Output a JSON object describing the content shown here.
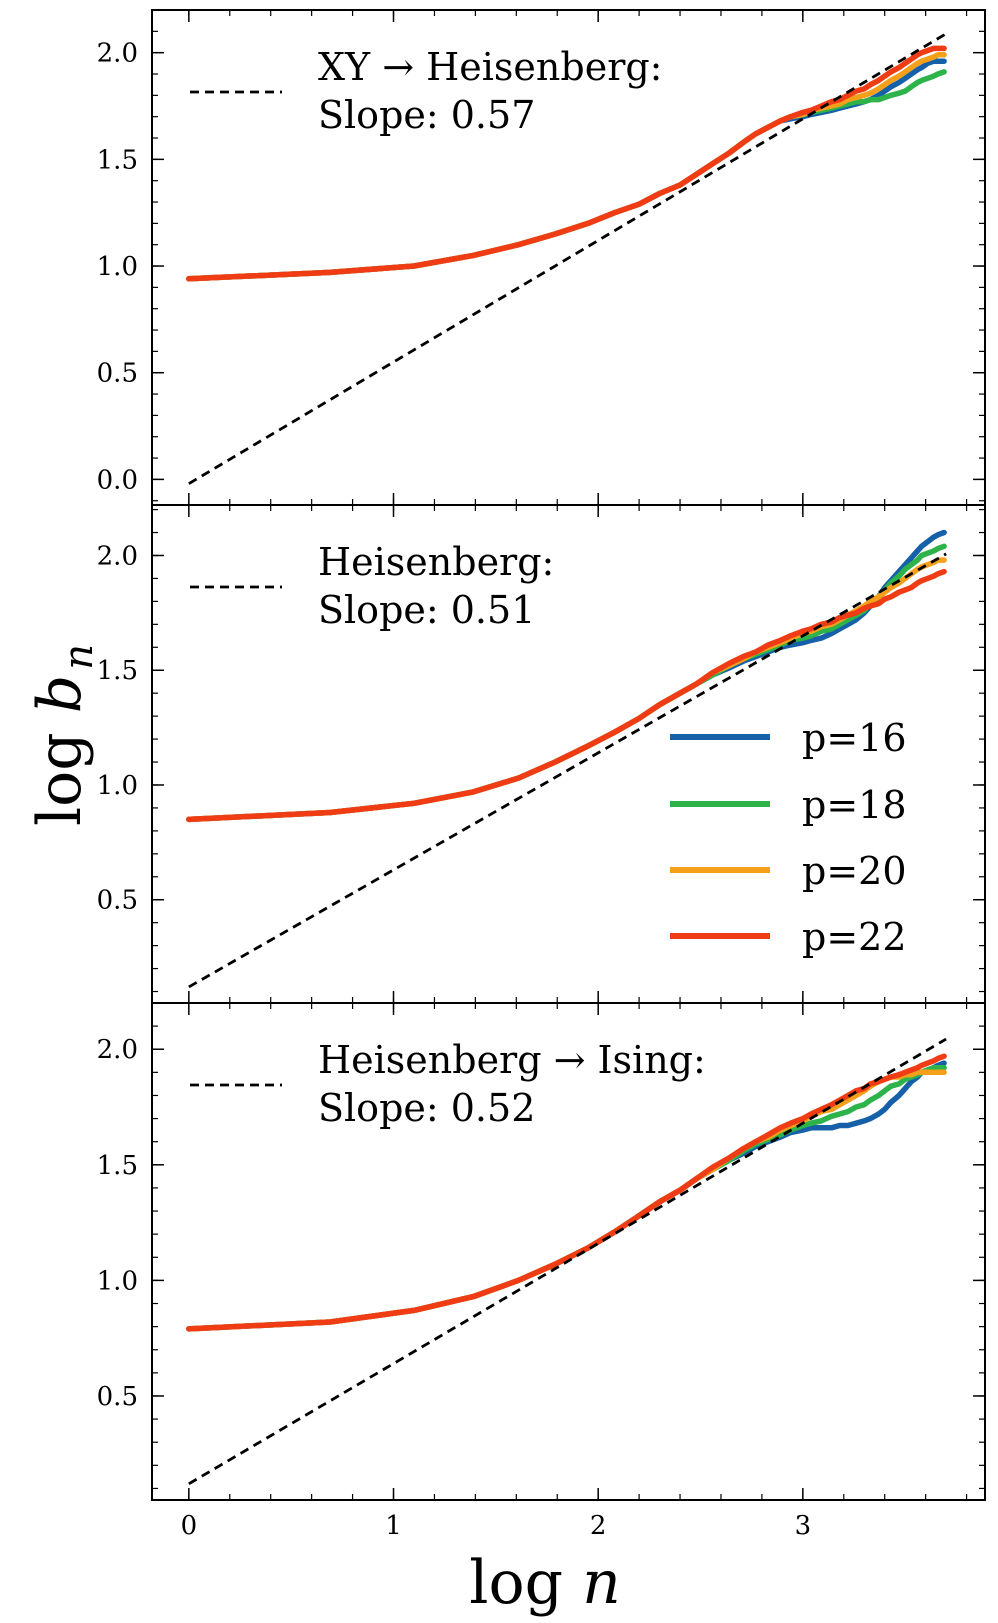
{
  "chart_data": {
    "type": "line",
    "shared_x_label": {
      "main": "log",
      "var": "n"
    },
    "shared_y_label": {
      "main": "log",
      "var": "b",
      "sub": "n"
    },
    "xlim": [
      -0.18,
      3.89
    ],
    "x_ticks": [
      0,
      1,
      2,
      3
    ],
    "x_tick_labels": [
      "0",
      "1",
      "2",
      "3"
    ],
    "legend": {
      "location": "center-right of middle panel",
      "entries": [
        {
          "label": "p=16",
          "color": "#1560a8"
        },
        {
          "label": "p=18",
          "color": "#2db34a"
        },
        {
          "label": "p=20",
          "color": "#f5a01a"
        },
        {
          "label": "p=22",
          "color": "#f03c14"
        }
      ]
    },
    "panels": [
      {
        "ylim": [
          -0.12,
          2.2
        ],
        "y_ticks": [
          0.0,
          0.5,
          1.0,
          1.5,
          2.0
        ],
        "y_tick_labels": [
          "0.0",
          "0.5",
          "1.0",
          "1.5",
          "2.0"
        ],
        "annotation_line1": "XY → Heisenberg:",
        "annotation_line2": "Slope: 0.57",
        "fit": {
          "slope": 0.57,
          "intercept": -0.02,
          "x": [
            0,
            3.7
          ]
        },
        "x": [
          0,
          0.69,
          1.1,
          1.39,
          1.61,
          1.79,
          1.95,
          2.08,
          2.2,
          2.3,
          2.4,
          2.48,
          2.56,
          2.64,
          2.71,
          2.77,
          2.83,
          2.89,
          2.94,
          3.0,
          3.04,
          3.09,
          3.14,
          3.18,
          3.22,
          3.26,
          3.3,
          3.33,
          3.37,
          3.4,
          3.43,
          3.47,
          3.5,
          3.53,
          3.56,
          3.58,
          3.61,
          3.64,
          3.66,
          3.69
        ],
        "series": [
          {
            "name": "p=16",
            "values": [
              0.94,
              0.97,
              1.0,
              1.05,
              1.1,
              1.15,
              1.2,
              1.25,
              1.29,
              1.34,
              1.38,
              1.43,
              1.48,
              1.53,
              1.58,
              1.62,
              1.65,
              1.68,
              1.69,
              1.7,
              1.71,
              1.72,
              1.73,
              1.74,
              1.75,
              1.76,
              1.77,
              1.78,
              1.8,
              1.82,
              1.84,
              1.86,
              1.88,
              1.9,
              1.92,
              1.93,
              1.95,
              1.96,
              1.96,
              1.96
            ]
          },
          {
            "name": "p=18",
            "values": [
              0.94,
              0.97,
              1.0,
              1.05,
              1.1,
              1.15,
              1.2,
              1.25,
              1.29,
              1.34,
              1.38,
              1.43,
              1.48,
              1.53,
              1.58,
              1.62,
              1.65,
              1.68,
              1.7,
              1.71,
              1.72,
              1.73,
              1.74,
              1.75,
              1.76,
              1.77,
              1.77,
              1.78,
              1.78,
              1.79,
              1.8,
              1.81,
              1.82,
              1.84,
              1.86,
              1.87,
              1.88,
              1.89,
              1.9,
              1.91
            ]
          },
          {
            "name": "p=20",
            "values": [
              0.94,
              0.97,
              1.0,
              1.05,
              1.1,
              1.15,
              1.2,
              1.25,
              1.29,
              1.34,
              1.38,
              1.43,
              1.48,
              1.53,
              1.58,
              1.62,
              1.65,
              1.68,
              1.7,
              1.71,
              1.73,
              1.74,
              1.75,
              1.76,
              1.78,
              1.79,
              1.8,
              1.81,
              1.83,
              1.85,
              1.87,
              1.89,
              1.91,
              1.93,
              1.95,
              1.96,
              1.97,
              1.98,
              1.99,
              1.99
            ]
          },
          {
            "name": "p=22",
            "values": [
              0.94,
              0.97,
              1.0,
              1.05,
              1.1,
              1.15,
              1.2,
              1.25,
              1.29,
              1.34,
              1.38,
              1.43,
              1.48,
              1.53,
              1.58,
              1.62,
              1.65,
              1.68,
              1.7,
              1.72,
              1.73,
              1.75,
              1.77,
              1.78,
              1.8,
              1.82,
              1.83,
              1.85,
              1.87,
              1.89,
              1.91,
              1.93,
              1.95,
              1.97,
              1.99,
              2.0,
              2.01,
              2.02,
              2.02,
              2.02
            ]
          }
        ]
      },
      {
        "ylim": [
          0.05,
          2.22
        ],
        "y_ticks": [
          0.5,
          1.0,
          1.5,
          2.0
        ],
        "y_tick_labels": [
          "0.5",
          "1.0",
          "1.5",
          "2.0"
        ],
        "annotation_line1": "Heisenberg:",
        "annotation_line2": "Slope: 0.51",
        "fit": {
          "slope": 0.51,
          "intercept": 0.12,
          "x": [
            0,
            3.7
          ]
        },
        "x": [
          0,
          0.69,
          1.1,
          1.39,
          1.61,
          1.79,
          1.95,
          2.08,
          2.2,
          2.3,
          2.4,
          2.48,
          2.56,
          2.64,
          2.71,
          2.77,
          2.83,
          2.89,
          2.94,
          3.0,
          3.04,
          3.09,
          3.14,
          3.18,
          3.22,
          3.26,
          3.3,
          3.33,
          3.37,
          3.4,
          3.43,
          3.47,
          3.5,
          3.53,
          3.56,
          3.58,
          3.61,
          3.64,
          3.66,
          3.69
        ],
        "series": [
          {
            "name": "p=16",
            "values": [
              0.85,
              0.88,
              0.92,
              0.97,
              1.03,
              1.1,
              1.17,
              1.23,
              1.29,
              1.35,
              1.4,
              1.44,
              1.48,
              1.51,
              1.54,
              1.56,
              1.58,
              1.6,
              1.61,
              1.62,
              1.63,
              1.64,
              1.66,
              1.68,
              1.7,
              1.72,
              1.75,
              1.78,
              1.82,
              1.86,
              1.89,
              1.93,
              1.96,
              1.99,
              2.02,
              2.04,
              2.06,
              2.08,
              2.09,
              2.1
            ]
          },
          {
            "name": "p=18",
            "values": [
              0.85,
              0.88,
              0.92,
              0.97,
              1.03,
              1.1,
              1.17,
              1.23,
              1.29,
              1.35,
              1.4,
              1.44,
              1.48,
              1.52,
              1.55,
              1.57,
              1.59,
              1.61,
              1.63,
              1.64,
              1.65,
              1.67,
              1.68,
              1.7,
              1.72,
              1.74,
              1.76,
              1.79,
              1.82,
              1.85,
              1.88,
              1.91,
              1.94,
              1.96,
              1.98,
              2.0,
              2.01,
              2.02,
              2.03,
              2.04
            ]
          },
          {
            "name": "p=20",
            "values": [
              0.85,
              0.88,
              0.92,
              0.97,
              1.03,
              1.1,
              1.17,
              1.23,
              1.29,
              1.35,
              1.4,
              1.44,
              1.49,
              1.52,
              1.55,
              1.58,
              1.6,
              1.62,
              1.64,
              1.66,
              1.67,
              1.69,
              1.7,
              1.72,
              1.74,
              1.76,
              1.78,
              1.8,
              1.82,
              1.84,
              1.86,
              1.88,
              1.9,
              1.92,
              1.94,
              1.95,
              1.96,
              1.97,
              1.98,
              1.98
            ]
          },
          {
            "name": "p=22",
            "values": [
              0.85,
              0.88,
              0.92,
              0.97,
              1.03,
              1.1,
              1.17,
              1.23,
              1.29,
              1.35,
              1.4,
              1.44,
              1.49,
              1.53,
              1.56,
              1.58,
              1.61,
              1.63,
              1.65,
              1.67,
              1.68,
              1.7,
              1.71,
              1.73,
              1.74,
              1.75,
              1.77,
              1.78,
              1.79,
              1.81,
              1.82,
              1.84,
              1.85,
              1.86,
              1.88,
              1.89,
              1.9,
              1.91,
              1.92,
              1.93
            ]
          }
        ]
      },
      {
        "ylim": [
          0.05,
          2.2
        ],
        "y_ticks": [
          0.5,
          1.0,
          1.5,
          2.0
        ],
        "y_tick_labels": [
          "0.5",
          "1.0",
          "1.5",
          "2.0"
        ],
        "annotation_line1": "Heisenberg → Ising:",
        "annotation_line2": "Slope: 0.52",
        "fit": {
          "slope": 0.52,
          "intercept": 0.12,
          "x": [
            0,
            3.7
          ]
        },
        "x": [
          0,
          0.69,
          1.1,
          1.39,
          1.61,
          1.79,
          1.95,
          2.08,
          2.2,
          2.3,
          2.4,
          2.48,
          2.56,
          2.64,
          2.71,
          2.77,
          2.83,
          2.89,
          2.94,
          3.0,
          3.04,
          3.09,
          3.14,
          3.18,
          3.22,
          3.26,
          3.3,
          3.33,
          3.37,
          3.4,
          3.43,
          3.47,
          3.5,
          3.53,
          3.56,
          3.58,
          3.61,
          3.64,
          3.66,
          3.69
        ],
        "series": [
          {
            "name": "p=16",
            "values": [
              0.79,
              0.82,
              0.87,
              0.93,
              1.0,
              1.07,
              1.14,
              1.21,
              1.28,
              1.34,
              1.39,
              1.44,
              1.48,
              1.52,
              1.55,
              1.58,
              1.6,
              1.62,
              1.64,
              1.65,
              1.66,
              1.66,
              1.66,
              1.67,
              1.67,
              1.68,
              1.69,
              1.7,
              1.72,
              1.74,
              1.77,
              1.8,
              1.83,
              1.86,
              1.88,
              1.9,
              1.91,
              1.92,
              1.93,
              1.94
            ]
          },
          {
            "name": "p=18",
            "values": [
              0.79,
              0.82,
              0.87,
              0.93,
              1.0,
              1.07,
              1.14,
              1.21,
              1.28,
              1.34,
              1.39,
              1.44,
              1.48,
              1.52,
              1.56,
              1.59,
              1.61,
              1.63,
              1.65,
              1.67,
              1.68,
              1.69,
              1.71,
              1.72,
              1.73,
              1.75,
              1.76,
              1.78,
              1.8,
              1.82,
              1.84,
              1.85,
              1.87,
              1.88,
              1.89,
              1.9,
              1.91,
              1.92,
              1.92,
              1.92
            ]
          },
          {
            "name": "p=20",
            "values": [
              0.79,
              0.82,
              0.87,
              0.93,
              1.0,
              1.07,
              1.14,
              1.21,
              1.28,
              1.34,
              1.39,
              1.44,
              1.48,
              1.53,
              1.57,
              1.6,
              1.62,
              1.65,
              1.67,
              1.69,
              1.71,
              1.73,
              1.74,
              1.76,
              1.78,
              1.8,
              1.82,
              1.84,
              1.86,
              1.87,
              1.88,
              1.88,
              1.89,
              1.89,
              1.9,
              1.9,
              1.9,
              1.9,
              1.9,
              1.9
            ]
          },
          {
            "name": "p=22",
            "values": [
              0.79,
              0.82,
              0.87,
              0.93,
              1.0,
              1.07,
              1.14,
              1.21,
              1.28,
              1.34,
              1.39,
              1.44,
              1.49,
              1.53,
              1.57,
              1.6,
              1.63,
              1.66,
              1.68,
              1.7,
              1.72,
              1.74,
              1.76,
              1.78,
              1.8,
              1.82,
              1.83,
              1.85,
              1.86,
              1.87,
              1.88,
              1.89,
              1.9,
              1.91,
              1.92,
              1.93,
              1.94,
              1.95,
              1.96,
              1.97
            ]
          }
        ]
      }
    ]
  }
}
